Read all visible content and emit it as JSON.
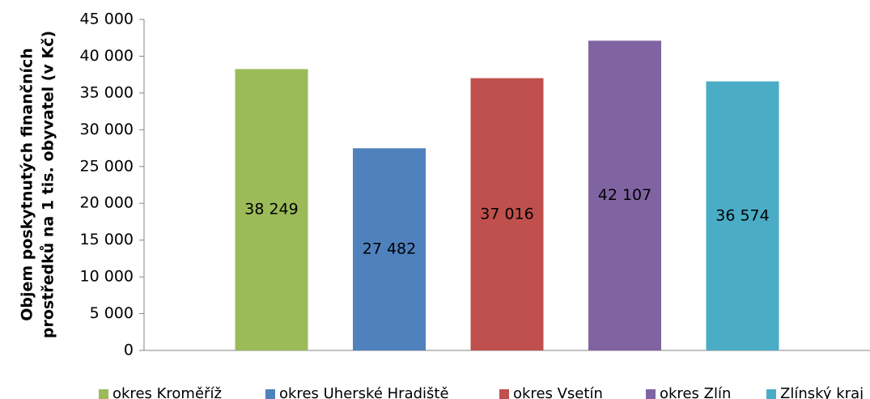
{
  "chart_data": {
    "type": "bar",
    "ylabel": [
      "Objem poskytnutých finančních",
      "prostředků na 1 tis. obyvatel (v Kč)"
    ],
    "categories": [
      null
    ],
    "series": [
      {
        "name": "okres Kroměříž",
        "color": "#9bbb59",
        "values": [
          38249
        ],
        "value_labels": [
          "38 249"
        ]
      },
      {
        "name": "okres Uherské Hradiště",
        "color": "#4f81bd",
        "values": [
          27482
        ],
        "value_labels": [
          "27 482"
        ]
      },
      {
        "name": "okres Vsetín",
        "color": "#c0504d",
        "values": [
          37016
        ],
        "value_labels": [
          "37 016"
        ]
      },
      {
        "name": "okres Zlín",
        "color": "#8064a2",
        "values": [
          42107
        ],
        "value_labels": [
          "42 107"
        ]
      },
      {
        "name": "Zlínský kraj",
        "color": "#4bacc6",
        "values": [
          36574
        ],
        "value_labels": [
          "36 574"
        ]
      }
    ],
    "ylim": [
      0,
      45000
    ],
    "yticks": [
      0,
      {
        "value": 5000,
        "label": "5 000"
      },
      {
        "value": 10000,
        "label": "10 000"
      },
      {
        "value": 15000,
        "label": "15 000"
      },
      {
        "value": 20000,
        "label": "20 000"
      },
      {
        "value": 25000,
        "label": "25 000"
      },
      {
        "value": 30000,
        "label": "30 000"
      },
      {
        "value": 35000,
        "label": "35 000"
      },
      {
        "value": 40000,
        "label": "40 000"
      },
      {
        "value": 45000,
        "label": "45 000"
      }
    ],
    "grid": false,
    "legend": "bottom"
  }
}
